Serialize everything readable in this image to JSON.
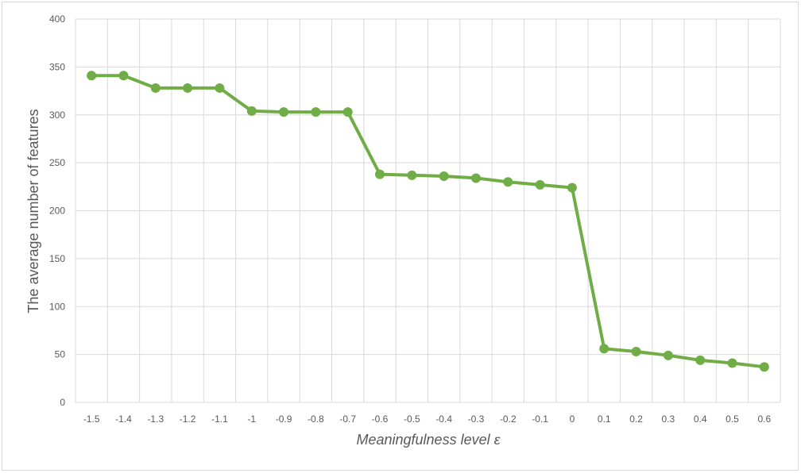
{
  "chart_data": {
    "type": "line",
    "title": "",
    "xlabel": "Meaningfulness level ε",
    "ylabel": "The average number of features",
    "categories": [
      "-1.5",
      "-1.4",
      "-1.3",
      "-1.2",
      "-1.1",
      "-1",
      "-0.9",
      "-0.8",
      "-0.7",
      "-0.6",
      "-0.5",
      "-0.4",
      "-0.3",
      "-0.2",
      "-0.1",
      "0",
      "0.1",
      "0.2",
      "0.3",
      "0.4",
      "0.5",
      "0.6"
    ],
    "series": [
      {
        "values": [
          341,
          341,
          328,
          328,
          328,
          304,
          303,
          303,
          303,
          238,
          237,
          236,
          234,
          230,
          227,
          224,
          56,
          53,
          49,
          44,
          41,
          37
        ]
      }
    ],
    "ylim": [
      0,
      400
    ],
    "yticks": [
      0,
      50,
      100,
      150,
      200,
      250,
      300,
      350,
      400
    ],
    "grid": true,
    "legend": "none",
    "line_color": "#70ad47",
    "grid_color": "#d9d9d9",
    "text_color": "#595959"
  }
}
